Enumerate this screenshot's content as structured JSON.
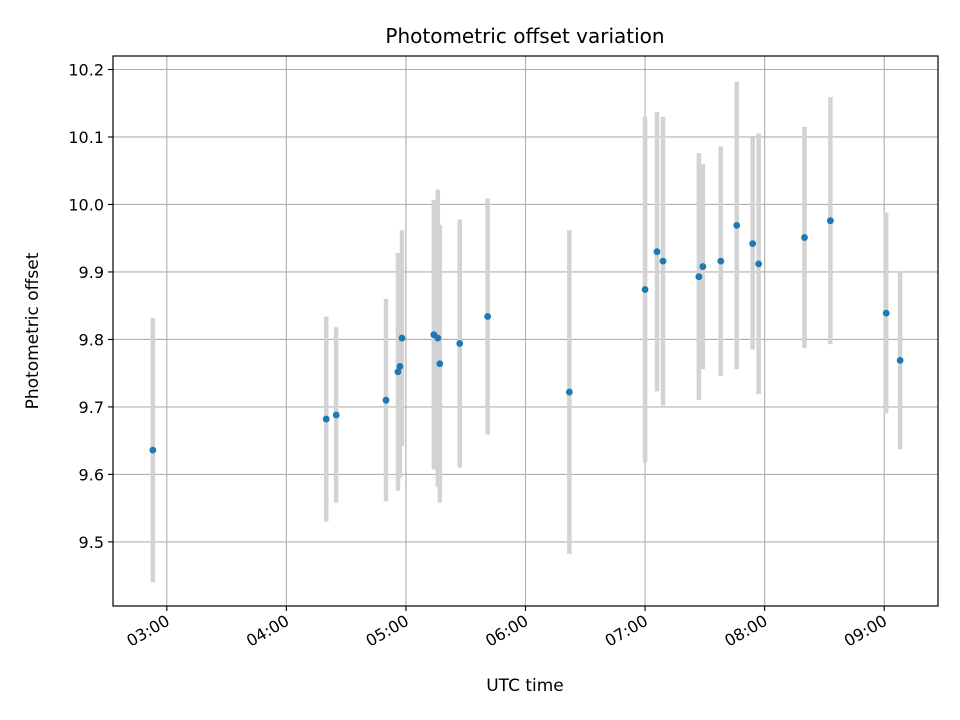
{
  "chart_data": {
    "type": "scatter",
    "title": "Photometric offset variation",
    "xlabel": "UTC time",
    "ylabel": "Photometric offset",
    "x_ticks": [
      "03:00",
      "04:00",
      "05:00",
      "06:00",
      "07:00",
      "08:00",
      "09:00"
    ],
    "y_ticks": [
      "9.5",
      "9.6",
      "9.7",
      "9.8",
      "9.9",
      "10.0",
      "10.1",
      "10.2"
    ],
    "xlim": [
      "02:33",
      "09:27"
    ],
    "ylim": [
      9.405,
      10.22
    ],
    "grid": true,
    "colors": {
      "point": "#1f77b4",
      "errorbar": "#d3d3d3",
      "grid": "#b0b0b0"
    },
    "points": [
      {
        "x": "02:53",
        "y": 9.636,
        "err": 0.196
      },
      {
        "x": "04:20",
        "y": 9.682,
        "err": 0.152
      },
      {
        "x": "04:25",
        "y": 9.688,
        "err": 0.13
      },
      {
        "x": "04:50",
        "y": 9.71,
        "err": 0.15
      },
      {
        "x": "04:56",
        "y": 9.752,
        "err": 0.176
      },
      {
        "x": "04:57",
        "y": 9.76,
        "err": 0.165
      },
      {
        "x": "04:58",
        "y": 9.802,
        "err": 0.16
      },
      {
        "x": "05:14",
        "y": 9.807,
        "err": 0.2
      },
      {
        "x": "05:16",
        "y": 9.802,
        "err": 0.22
      },
      {
        "x": "05:17",
        "y": 9.764,
        "err": 0.206
      },
      {
        "x": "05:27",
        "y": 9.794,
        "err": 0.184
      },
      {
        "x": "05:41",
        "y": 9.834,
        "err": 0.175
      },
      {
        "x": "06:22",
        "y": 9.722,
        "err": 0.24
      },
      {
        "x": "07:00",
        "y": 9.874,
        "err": 0.256
      },
      {
        "x": "07:06",
        "y": 9.93,
        "err": 0.207
      },
      {
        "x": "07:09",
        "y": 9.916,
        "err": 0.214
      },
      {
        "x": "07:27",
        "y": 9.893,
        "err": 0.183
      },
      {
        "x": "07:29",
        "y": 9.908,
        "err": 0.152
      },
      {
        "x": "07:38",
        "y": 9.916,
        "err": 0.17
      },
      {
        "x": "07:46",
        "y": 9.969,
        "err": 0.213
      },
      {
        "x": "07:54",
        "y": 9.942,
        "err": 0.157
      },
      {
        "x": "07:57",
        "y": 9.912,
        "err": 0.193
      },
      {
        "x": "08:20",
        "y": 9.951,
        "err": 0.164
      },
      {
        "x": "08:33",
        "y": 9.976,
        "err": 0.183
      },
      {
        "x": "09:01",
        "y": 9.839,
        "err": 0.149
      },
      {
        "x": "09:08",
        "y": 9.769,
        "err": 0.132
      }
    ]
  }
}
